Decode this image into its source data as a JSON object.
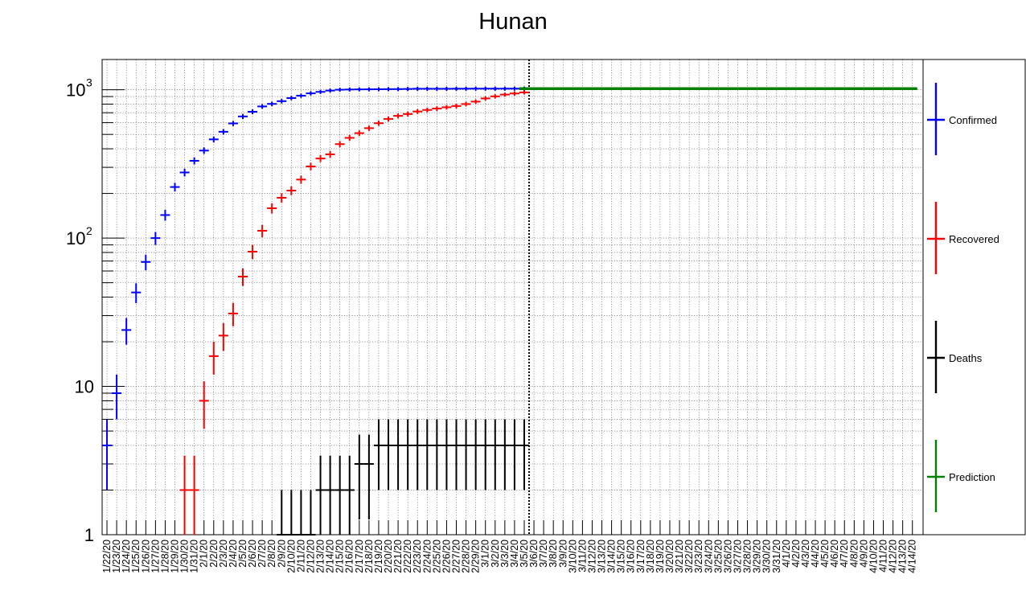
{
  "chart_data": {
    "type": "scatter",
    "title": "Hunan",
    "y_scale": "log",
    "ylim": [
      1,
      1600
    ],
    "y_ticks": [
      {
        "value": 1,
        "label": "1",
        "sup": ""
      },
      {
        "value": 10,
        "label": "10",
        "sup": ""
      },
      {
        "value": 100,
        "label": "10",
        "sup": "2"
      },
      {
        "value": 1000,
        "label": "10",
        "sup": "3"
      }
    ],
    "grid": true,
    "x_categories": [
      "1/22/20",
      "1/23/20",
      "1/24/20",
      "1/25/20",
      "1/26/20",
      "1/27/20",
      "1/28/20",
      "1/29/20",
      "1/30/20",
      "1/31/20",
      "2/1/20",
      "2/2/20",
      "2/3/20",
      "2/4/20",
      "2/5/20",
      "2/6/20",
      "2/7/20",
      "2/8/20",
      "2/9/20",
      "2/10/20",
      "2/11/20",
      "2/12/20",
      "2/13/20",
      "2/14/20",
      "2/15/20",
      "2/16/20",
      "2/17/20",
      "2/18/20",
      "2/19/20",
      "2/20/20",
      "2/21/20",
      "2/22/20",
      "2/23/20",
      "2/24/20",
      "2/25/20",
      "2/26/20",
      "2/27/20",
      "2/28/20",
      "2/29/20",
      "3/1/20",
      "3/2/20",
      "3/3/20",
      "3/4/20",
      "3/5/20",
      "3/6/20",
      "3/7/20",
      "3/8/20",
      "3/9/20",
      "3/10/20",
      "3/11/20",
      "3/12/20",
      "3/13/20",
      "3/14/20",
      "3/15/20",
      "3/16/20",
      "3/17/20",
      "3/18/20",
      "3/19/20",
      "3/20/20",
      "3/21/20",
      "3/22/20",
      "3/23/20",
      "3/24/20",
      "3/25/20",
      "3/26/20",
      "3/27/20",
      "3/28/20",
      "3/29/20",
      "3/30/20",
      "3/31/20",
      "4/1/20",
      "4/2/20",
      "4/3/20",
      "4/4/20",
      "4/5/20",
      "4/6/20",
      "4/7/20",
      "4/8/20",
      "4/9/20",
      "4/10/20",
      "4/11/20",
      "4/12/20",
      "4/13/20",
      "4/14/20"
    ],
    "divider_after": "3/5/20",
    "legend_position": "right",
    "series": [
      {
        "name": "Confirmed",
        "color": "#0000ff",
        "start": 0,
        "values": [
          4,
          9,
          24,
          43,
          69,
          100,
          143,
          221,
          277,
          332,
          389,
          463,
          521,
          593,
          661,
          711,
          772,
          803,
          838,
          879,
          912,
          946,
          968,
          988,
          1001,
          1004,
          1006,
          1007,
          1008,
          1010,
          1011,
          1013,
          1016,
          1016,
          1016,
          1016,
          1017,
          1017,
          1018,
          1018,
          1018,
          1018,
          1018,
          1018
        ]
      },
      {
        "name": "Recovered",
        "color": "#ff0000",
        "start": 0,
        "values": [
          0,
          0,
          0,
          0,
          0,
          0,
          0,
          0,
          2,
          2,
          8,
          16,
          22,
          31,
          55,
          81,
          112,
          159,
          187,
          209,
          248,
          304,
          344,
          367,
          430,
          474,
          510,
          551,
          595,
          636,
          667,
          686,
          714,
          731,
          747,
          762,
          777,
          801,
          832,
          874,
          903,
          928,
          944,
          960
        ]
      },
      {
        "name": "Deaths",
        "color": "#000000",
        "start": 0,
        "values": [
          0,
          0,
          0,
          0,
          0,
          0,
          0,
          0,
          0,
          0,
          0,
          0,
          0,
          0,
          0,
          0,
          0,
          0,
          1,
          1,
          1,
          1,
          2,
          2,
          2,
          2,
          3,
          3,
          4,
          4,
          4,
          4,
          4,
          4,
          4,
          4,
          4,
          4,
          4,
          4,
          4,
          4,
          4,
          4
        ]
      },
      {
        "name": "Prediction",
        "color": "#008000",
        "start": 43,
        "values": [
          1018,
          1018,
          1018,
          1018,
          1018,
          1018,
          1018,
          1018,
          1018,
          1018,
          1018,
          1018,
          1018,
          1018,
          1018,
          1018,
          1018,
          1018,
          1018,
          1018,
          1018,
          1018,
          1018,
          1018,
          1018,
          1018,
          1018,
          1018,
          1018,
          1018,
          1018,
          1018,
          1018,
          1018,
          1018,
          1018,
          1018,
          1018,
          1018,
          1018,
          1018
        ]
      }
    ]
  }
}
